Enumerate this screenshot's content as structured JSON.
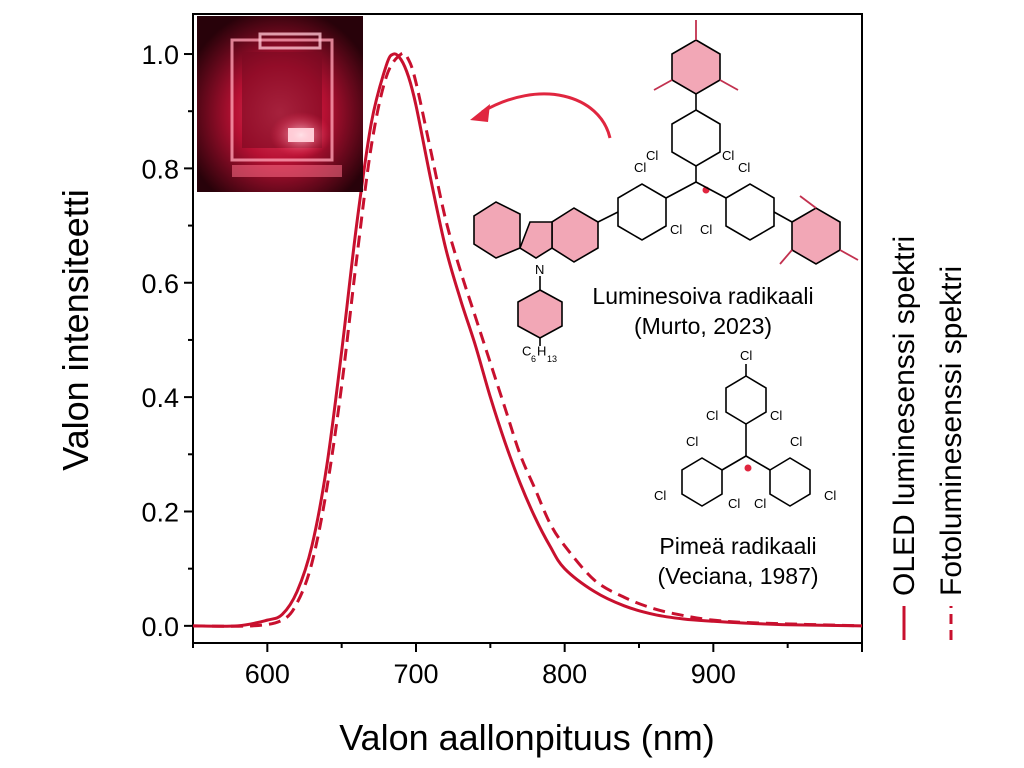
{
  "chart_data": {
    "type": "line",
    "xlabel": "Valon aallonpituus (nm)",
    "ylabel": "Valon intensiteetti",
    "xlim": [
      550,
      1000
    ],
    "ylim": [
      -0.03,
      1.07
    ],
    "xticks": [
      600,
      700,
      800,
      900
    ],
    "xtick_labels": [
      "600",
      "700",
      "800",
      "900"
    ],
    "yticks": [
      0.0,
      0.2,
      0.4,
      0.6,
      0.8,
      1.0
    ],
    "ytick_labels": [
      "0.0",
      "0.2",
      "0.4",
      "0.6",
      "0.8",
      "1.0"
    ],
    "legend_position": "right, vertical",
    "series": [
      {
        "name": "OLED luminesenssi spektri",
        "style": "solid",
        "color": "#c8102e",
        "x": [
          550,
          580,
          600,
          610,
          620,
          630,
          640,
          650,
          660,
          670,
          680,
          685,
          690,
          695,
          700,
          710,
          720,
          730,
          740,
          750,
          760,
          770,
          780,
          790,
          800,
          820,
          840,
          860,
          880,
          900,
          920,
          950,
          1000
        ],
        "y": [
          0.0,
          0.0,
          0.01,
          0.02,
          0.06,
          0.14,
          0.28,
          0.48,
          0.7,
          0.88,
          0.98,
          1.0,
          0.99,
          0.96,
          0.91,
          0.78,
          0.66,
          0.57,
          0.49,
          0.4,
          0.32,
          0.25,
          0.19,
          0.14,
          0.1,
          0.06,
          0.035,
          0.02,
          0.012,
          0.008,
          0.005,
          0.002,
          0.0
        ]
      },
      {
        "name": "Fotoluminesenssi spektri",
        "style": "dashed",
        "color": "#c8102e",
        "x": [
          550,
          590,
          610,
          620,
          630,
          640,
          650,
          660,
          670,
          680,
          690,
          695,
          700,
          710,
          720,
          730,
          740,
          750,
          760,
          770,
          780,
          790,
          800,
          820,
          840,
          860,
          880,
          900,
          930,
          1000
        ],
        "y": [
          0.0,
          0.0,
          0.01,
          0.04,
          0.11,
          0.24,
          0.42,
          0.64,
          0.84,
          0.96,
          1.0,
          0.99,
          0.95,
          0.83,
          0.71,
          0.62,
          0.54,
          0.46,
          0.38,
          0.3,
          0.24,
          0.18,
          0.14,
          0.08,
          0.05,
          0.03,
          0.018,
          0.01,
          0.005,
          0.0
        ]
      }
    ]
  },
  "annotations": {
    "luminescent_radical_name": "Luminesoiva radikaali",
    "luminescent_radical_ref": "(Murto, 2023)",
    "dark_radical_name": "Pimeä radikaali",
    "dark_radical_ref": "(Veciana, 1987)",
    "arrow_color": "#e0263f",
    "radical_dot_color": "#e0263f"
  },
  "molecule_labels": {
    "cl": "Cl",
    "n": "N",
    "hexyl_c": "C",
    "hexyl_c_sub": "6",
    "hexyl_h": "H",
    "hexyl_h_sub": "13"
  },
  "inset_photo": {
    "description_icon": "oled-device-photo",
    "glow_color": "#ff2a55"
  },
  "colors": {
    "curve": "#c8102e",
    "ring_fill": "#f2a7b6",
    "axis": "#000000"
  }
}
